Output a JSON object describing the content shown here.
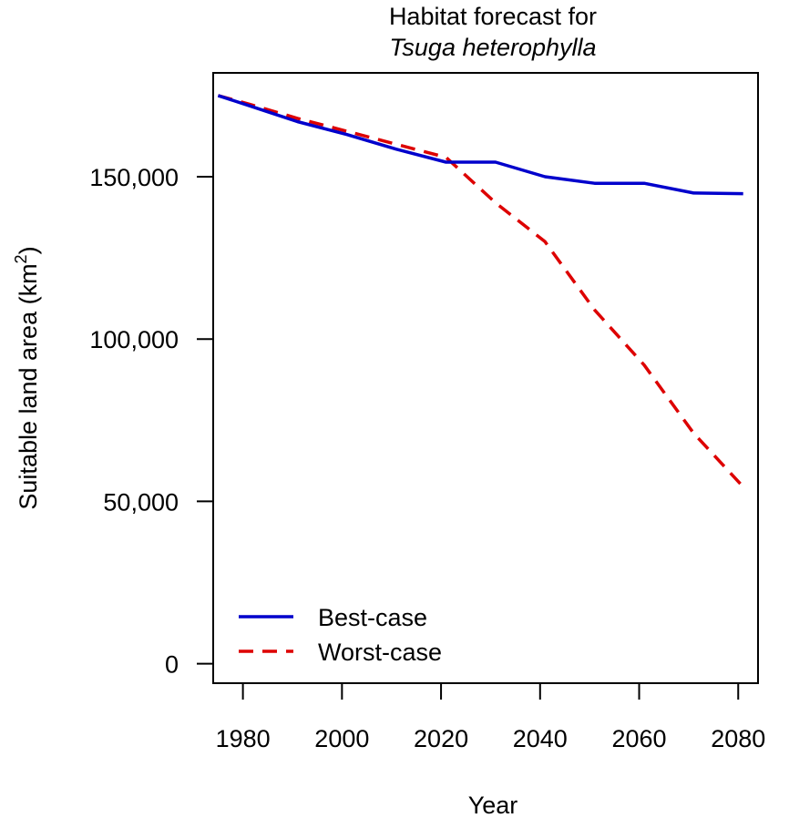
{
  "chart_data": {
    "type": "line",
    "title": "Habitat forecast for",
    "subtitle": "Tsuga heterophylla",
    "xlabel": "Year",
    "ylabel": "Suitable land area (km",
    "ylabel_sup": "2",
    "ylabel_close": ")",
    "xlim": [
      1974,
      2084
    ],
    "ylim": [
      -6000,
      182000
    ],
    "x_ticks": [
      1980,
      2000,
      2020,
      2040,
      2060,
      2080
    ],
    "x_tick_labels": [
      "1980",
      "2000",
      "2020",
      "2040",
      "2060",
      "2080"
    ],
    "y_ticks": [
      0,
      50000,
      100000,
      150000
    ],
    "y_tick_labels": [
      "0",
      "50,000",
      "100,000",
      "150,000"
    ],
    "grid": false,
    "legend_position": "bottom-left",
    "series": [
      {
        "name": "Best-case",
        "color": "#0000cc",
        "dash": "solid",
        "x": [
          1975,
          1981,
          1991,
          2001,
          2011,
          2021,
          2031,
          2041,
          2051,
          2061,
          2071,
          2081
        ],
        "values": [
          175000,
          172000,
          167000,
          163000,
          158500,
          154500,
          154500,
          150000,
          148000,
          148000,
          145000,
          144800
        ]
      },
      {
        "name": "Worst-case",
        "color": "#dd0000",
        "dash": "dashed",
        "x": [
          1975,
          1981,
          1991,
          2001,
          2011,
          2021,
          2031,
          2041,
          2051,
          2061,
          2071,
          2081
        ],
        "values": [
          175000,
          172500,
          168000,
          164000,
          160000,
          156000,
          142000,
          130000,
          109000,
          92000,
          71000,
          54500
        ]
      }
    ]
  }
}
